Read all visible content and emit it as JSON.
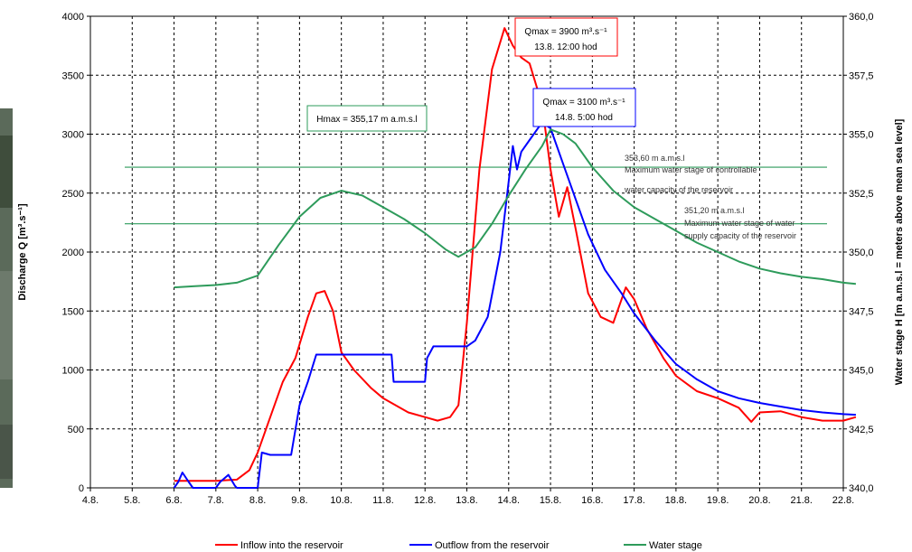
{
  "chart_data": {
    "type": "line",
    "x_categories": [
      "4.8.",
      "5.8.",
      "6.8.",
      "7.8.",
      "8.8.",
      "9.8.",
      "10.8.",
      "11.8.",
      "12.8.",
      "13.8.",
      "14.8.",
      "15.8.",
      "16.8.",
      "17.8.",
      "18.8.",
      "19.8.",
      "20.8.",
      "21.8.",
      "22.8."
    ],
    "ylabel_left": "Discharge  Q  [m³.s⁻¹]",
    "ylabel_right": "Water stage H  [m a.m.s.l = meters above mean sea level]",
    "ylim_left": [
      0,
      4000
    ],
    "y_ticks_left": [
      "0",
      "500",
      "1000",
      "1500",
      "2000",
      "2500",
      "3000",
      "3500",
      "4000"
    ],
    "ylim_right": [
      340,
      360
    ],
    "y_ticks_right": [
      "340,0",
      "342,5",
      "345,0",
      "347,5",
      "350,0",
      "352,5",
      "355,0",
      "357,5",
      "360,0"
    ],
    "grid": true,
    "legend_position": "bottom",
    "series": [
      {
        "name": "Inflow into the reservoir",
        "color": "#ff0000",
        "axis": "left",
        "points": [
          [
            6.0,
            60
          ],
          [
            6.5,
            60
          ],
          [
            7.0,
            60
          ],
          [
            7.5,
            70
          ],
          [
            7.8,
            150
          ],
          [
            8.0,
            300
          ],
          [
            8.3,
            600
          ],
          [
            8.6,
            900
          ],
          [
            8.9,
            1100
          ],
          [
            9.2,
            1450
          ],
          [
            9.4,
            1650
          ],
          [
            9.6,
            1670
          ],
          [
            9.8,
            1500
          ],
          [
            10.0,
            1150
          ],
          [
            10.3,
            1000
          ],
          [
            10.7,
            850
          ],
          [
            11.0,
            760
          ],
          [
            11.3,
            700
          ],
          [
            11.6,
            640
          ],
          [
            12.0,
            600
          ],
          [
            12.3,
            570
          ],
          [
            12.6,
            600
          ],
          [
            12.8,
            700
          ],
          [
            13.0,
            1400
          ],
          [
            13.3,
            2700
          ],
          [
            13.6,
            3550
          ],
          [
            13.9,
            3900
          ],
          [
            14.1,
            3750
          ],
          [
            14.3,
            3650
          ],
          [
            14.5,
            3600
          ],
          [
            14.8,
            3250
          ],
          [
            15.0,
            2700
          ],
          [
            15.2,
            2300
          ],
          [
            15.4,
            2550
          ],
          [
            15.6,
            2200
          ],
          [
            15.9,
            1650
          ],
          [
            16.2,
            1450
          ],
          [
            16.5,
            1400
          ],
          [
            16.8,
            1700
          ],
          [
            17.0,
            1600
          ],
          [
            17.3,
            1350
          ],
          [
            17.7,
            1100
          ],
          [
            18.0,
            950
          ],
          [
            18.5,
            820
          ],
          [
            19.0,
            760
          ],
          [
            19.5,
            680
          ],
          [
            19.8,
            560
          ],
          [
            20.0,
            640
          ],
          [
            20.5,
            650
          ],
          [
            21.0,
            600
          ],
          [
            21.5,
            570
          ],
          [
            22.0,
            570
          ],
          [
            22.3,
            600
          ]
        ]
      },
      {
        "name": "Outflow from the reservoir",
        "color": "#0000ff",
        "axis": "left",
        "points": [
          [
            6.0,
            0
          ],
          [
            6.1,
            50
          ],
          [
            6.2,
            130
          ],
          [
            6.35,
            50
          ],
          [
            6.45,
            0
          ],
          [
            7.0,
            0
          ],
          [
            7.1,
            50
          ],
          [
            7.3,
            110
          ],
          [
            7.45,
            20
          ],
          [
            7.5,
            0
          ],
          [
            8.0,
            0
          ],
          [
            8.1,
            300
          ],
          [
            8.3,
            280
          ],
          [
            8.8,
            280
          ],
          [
            9.0,
            700
          ],
          [
            9.2,
            900
          ],
          [
            9.4,
            1130
          ],
          [
            11.2,
            1130
          ],
          [
            11.25,
            900
          ],
          [
            12.0,
            900
          ],
          [
            12.05,
            1100
          ],
          [
            12.2,
            1200
          ],
          [
            13.0,
            1200
          ],
          [
            13.2,
            1250
          ],
          [
            13.5,
            1450
          ],
          [
            13.8,
            2000
          ],
          [
            14.0,
            2600
          ],
          [
            14.1,
            2900
          ],
          [
            14.2,
            2700
          ],
          [
            14.3,
            2850
          ],
          [
            14.5,
            2950
          ],
          [
            14.8,
            3100
          ],
          [
            15.0,
            3050
          ],
          [
            15.3,
            2750
          ],
          [
            15.6,
            2450
          ],
          [
            15.9,
            2150
          ],
          [
            16.3,
            1850
          ],
          [
            16.7,
            1650
          ],
          [
            17.0,
            1480
          ],
          [
            17.5,
            1250
          ],
          [
            18.0,
            1050
          ],
          [
            18.5,
            920
          ],
          [
            19.0,
            820
          ],
          [
            19.5,
            760
          ],
          [
            20.0,
            720
          ],
          [
            20.5,
            690
          ],
          [
            21.0,
            660
          ],
          [
            21.5,
            640
          ],
          [
            22.0,
            625
          ],
          [
            22.3,
            620
          ]
        ]
      },
      {
        "name": "Water stage",
        "color": "#2e9b5b",
        "axis": "right",
        "points": [
          [
            6.0,
            348.5
          ],
          [
            6.5,
            348.55
          ],
          [
            7.0,
            348.6
          ],
          [
            7.5,
            348.7
          ],
          [
            8.0,
            349.0
          ],
          [
            8.5,
            350.3
          ],
          [
            9.0,
            351.5
          ],
          [
            9.5,
            352.3
          ],
          [
            10.0,
            352.6
          ],
          [
            10.5,
            352.4
          ],
          [
            11.0,
            351.9
          ],
          [
            11.5,
            351.4
          ],
          [
            12.0,
            350.8
          ],
          [
            12.5,
            350.1
          ],
          [
            12.8,
            349.8
          ],
          [
            13.2,
            350.2
          ],
          [
            13.6,
            351.2
          ],
          [
            14.0,
            352.4
          ],
          [
            14.4,
            353.5
          ],
          [
            14.8,
            354.5
          ],
          [
            15.0,
            355.2
          ],
          [
            15.3,
            355.0
          ],
          [
            15.6,
            354.6
          ],
          [
            16.0,
            353.6
          ],
          [
            16.5,
            352.6
          ],
          [
            17.0,
            351.9
          ],
          [
            17.5,
            351.4
          ],
          [
            18.0,
            350.9
          ],
          [
            18.5,
            350.4
          ],
          [
            19.0,
            350.0
          ],
          [
            19.5,
            349.6
          ],
          [
            20.0,
            349.3
          ],
          [
            20.5,
            349.1
          ],
          [
            21.0,
            348.95
          ],
          [
            21.5,
            348.85
          ],
          [
            22.0,
            348.7
          ],
          [
            22.3,
            348.65
          ]
        ]
      }
    ],
    "reference_lines": [
      {
        "axis": "right",
        "value": 353.6,
        "color": "#2e9b5b"
      },
      {
        "axis": "right",
        "value": 351.2,
        "color": "#2e9b5b"
      }
    ],
    "annotations": {
      "qmax_inflow": {
        "line1": "Qmax = 3900 m³.s⁻¹",
        "line2": "13.8.  12:00 hod",
        "color": "#ff0000"
      },
      "qmax_outflow": {
        "line1": "Qmax = 3100 m³.s⁻¹",
        "line2": "14.8. 5:00 hod",
        "color": "#0000ff"
      },
      "hmax": {
        "text": "Hmax = 355,17 m a.m.s.l",
        "color": "#2e9b5b"
      },
      "controllable": {
        "line1": "353,60 m a.m.s.l",
        "line2": "Maximum water stage of controllable",
        "line3": "water capacity of the reservoir"
      },
      "supply": {
        "line1": "351,20 m a.m.s.l",
        "line2": "Maximum water stage of water",
        "line3": "supply capacity of the reservoir"
      }
    }
  }
}
